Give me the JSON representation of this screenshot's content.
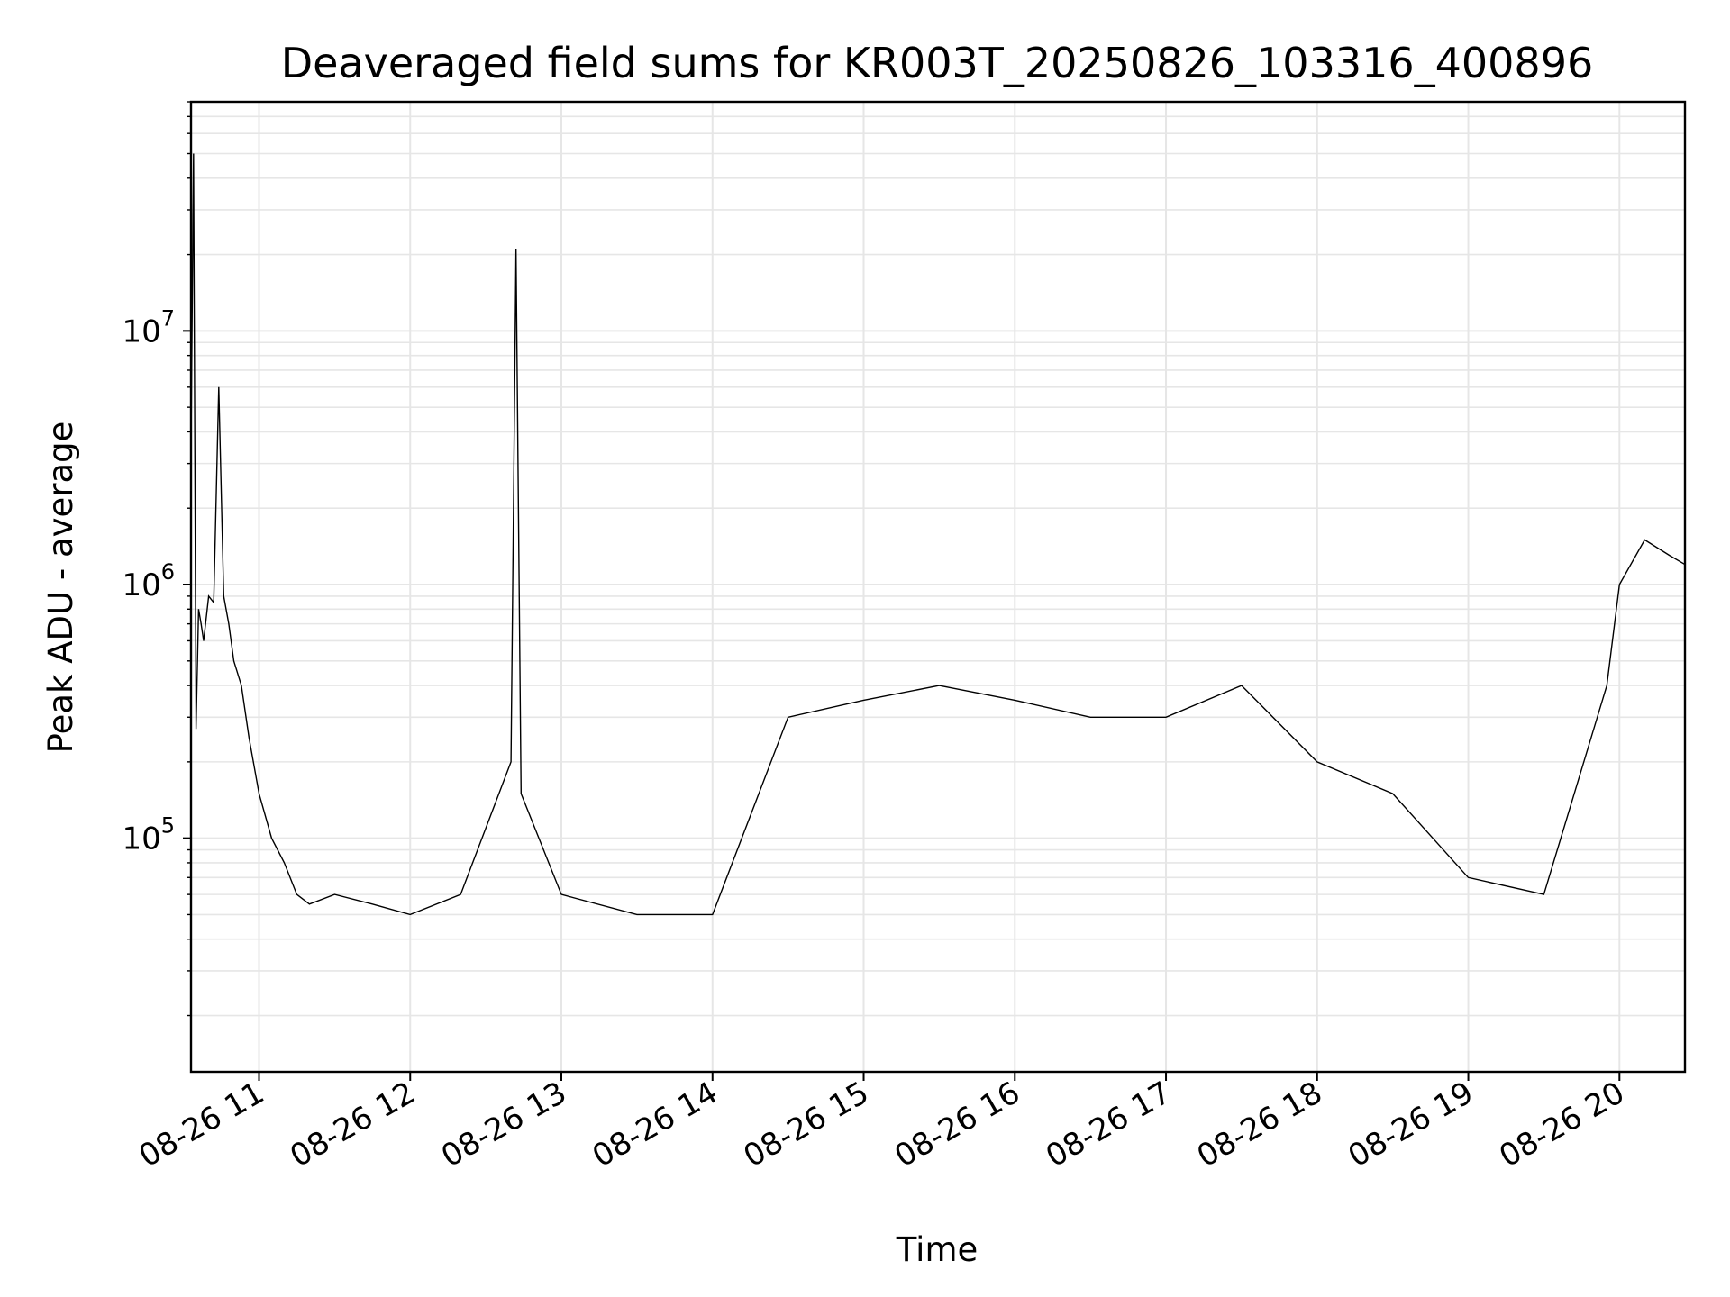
{
  "chart_data": {
    "type": "line",
    "title": "Deaveraged field sums for KR003T_20250826_103316_400896",
    "xlabel": "Time",
    "ylabel": "Peak ADU - average",
    "x_range": [
      "2025-08-26 10:33",
      "2025-08-26 20:26"
    ],
    "y_scale": "log",
    "ylim": [
      12000,
      80000000
    ],
    "y_ticks": [
      {
        "value": 100000,
        "base": "10",
        "exp": "5"
      },
      {
        "value": 1000000,
        "base": "10",
        "exp": "6"
      },
      {
        "value": 10000000,
        "base": "10",
        "exp": "7"
      }
    ],
    "x_ticks": [
      "08-26 11",
      "08-26 12",
      "08-26 13",
      "08-26 14",
      "08-26 15",
      "08-26 16",
      "08-26 17",
      "08-26 18",
      "08-26 19",
      "08-26 20"
    ],
    "grid": true,
    "line_color": "#000000",
    "grid_color": "#e6e6e6",
    "series": [
      {
        "x": [
          "2025-08-26 10:33",
          "2025-08-26 10:34",
          "2025-08-26 10:35",
          "2025-08-26 10:36",
          "2025-08-26 10:37",
          "2025-08-26 10:38",
          "2025-08-26 10:40",
          "2025-08-26 10:42",
          "2025-08-26 10:44",
          "2025-08-26 10:46",
          "2025-08-26 10:48",
          "2025-08-26 10:50",
          "2025-08-26 10:53",
          "2025-08-26 10:56",
          "2025-08-26 11:00",
          "2025-08-26 11:05",
          "2025-08-26 11:10",
          "2025-08-26 11:15",
          "2025-08-26 11:20",
          "2025-08-26 11:30",
          "2025-08-26 11:45",
          "2025-08-26 12:00",
          "2025-08-26 12:20",
          "2025-08-26 12:40",
          "2025-08-26 12:42",
          "2025-08-26 12:44",
          "2025-08-26 13:00",
          "2025-08-26 13:30",
          "2025-08-26 14:00",
          "2025-08-26 14:30",
          "2025-08-26 15:00",
          "2025-08-26 15:30",
          "2025-08-26 16:00",
          "2025-08-26 16:30",
          "2025-08-26 17:00",
          "2025-08-26 17:30",
          "2025-08-26 18:00",
          "2025-08-26 18:30",
          "2025-08-26 19:00",
          "2025-08-26 19:30",
          "2025-08-26 19:55",
          "2025-08-26 20:00",
          "2025-08-26 20:10",
          "2025-08-26 20:20",
          "2025-08-26 20:26"
        ],
        "y": [
          3500000,
          50000000,
          270000,
          800000,
          700000,
          600000,
          900000,
          850000,
          6000000,
          900000,
          700000,
          500000,
          400000,
          250000,
          150000,
          100000,
          80000,
          60000,
          55000,
          60000,
          55000,
          50000,
          60000,
          200000,
          21000000,
          150000,
          60000,
          50000,
          50000,
          300000,
          350000,
          400000,
          350000,
          300000,
          300000,
          400000,
          200000,
          150000,
          70000,
          60000,
          400000,
          1000000,
          1500000,
          1300000,
          1200000
        ]
      }
    ]
  }
}
